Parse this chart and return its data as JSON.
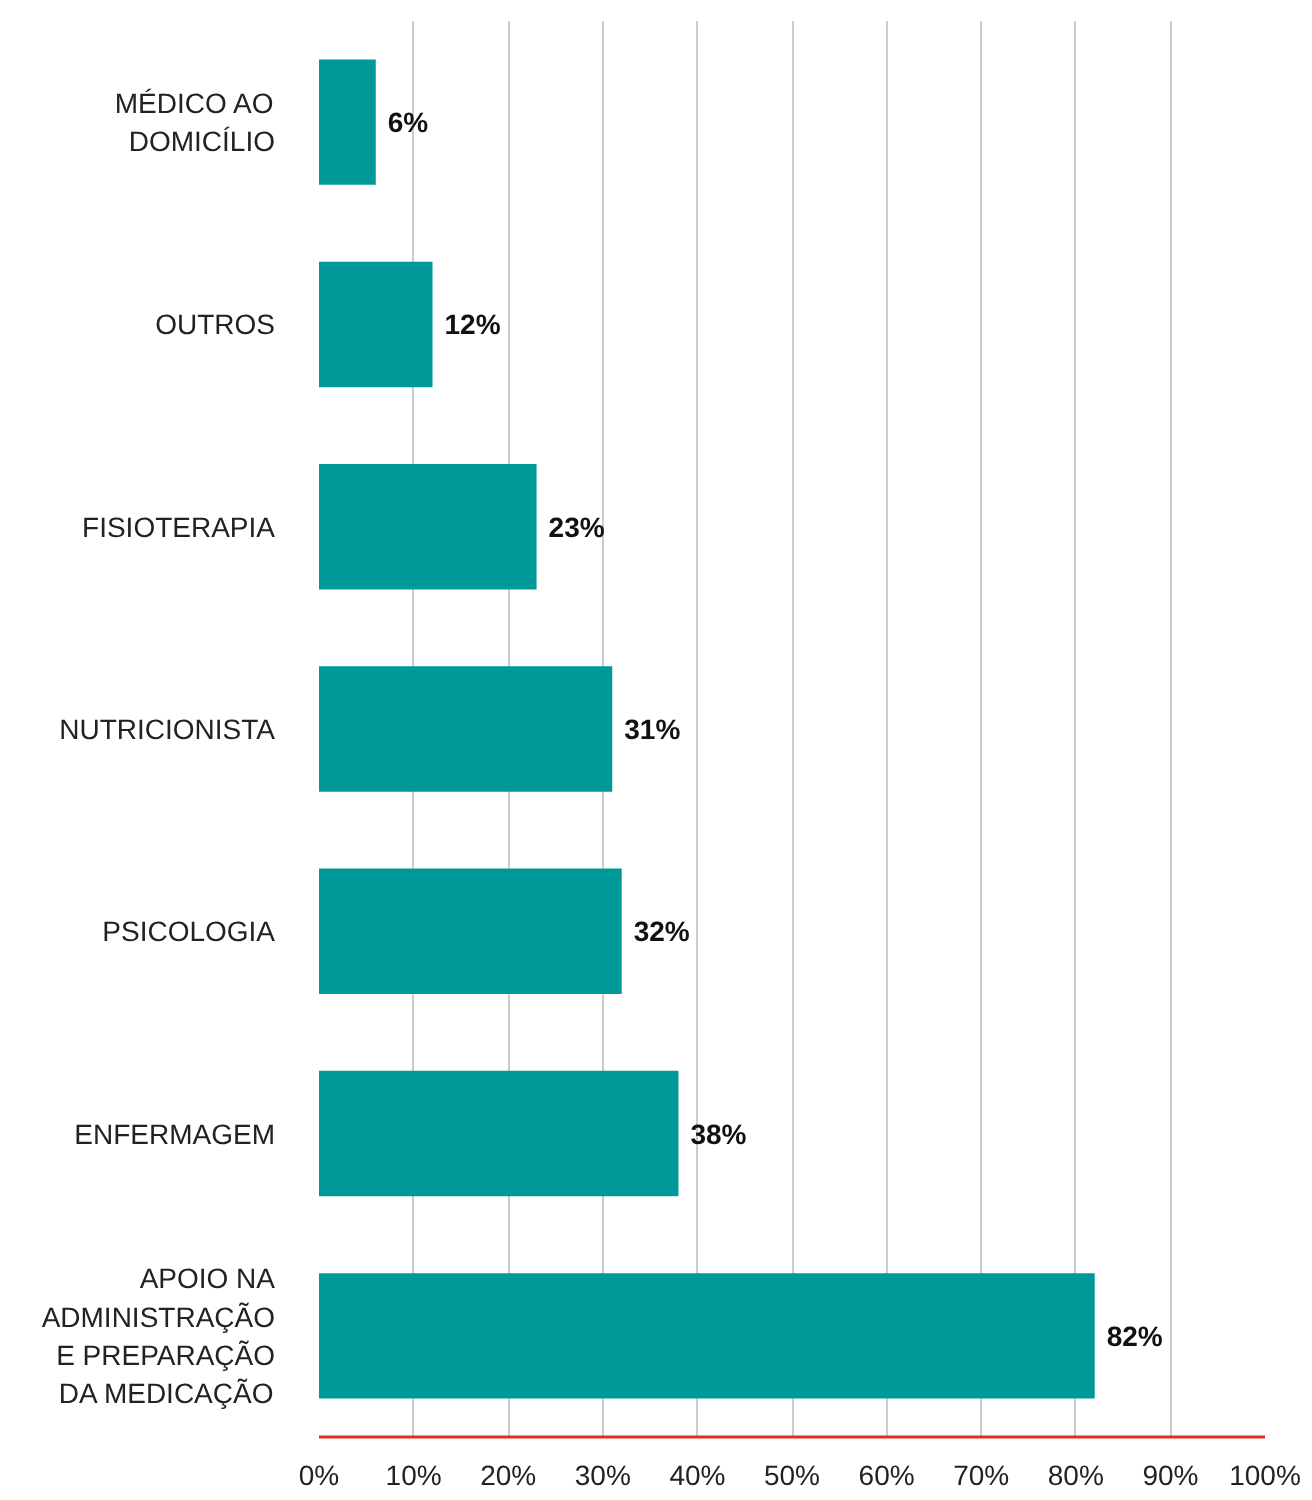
{
  "chart_data": {
    "type": "bar",
    "orientation": "horizontal",
    "categories": [
      "MÉDICO AO\nDOMICÍLIO",
      "OUTROS",
      "FISIOTERAPIA",
      "NUTRICIONISTA",
      "PSICOLOGIA",
      "ENFERMAGEM",
      "APOIO NA\nADMINISTRAÇÃO\nE PREPARAÇÃO\nDA MEDICAÇÃO"
    ],
    "values": [
      6,
      12,
      23,
      31,
      32,
      38,
      82
    ],
    "value_labels": [
      "6%",
      "12%",
      "23%",
      "31%",
      "32%",
      "38%",
      "82%"
    ],
    "color": "#00999a",
    "xlim": [
      0,
      100
    ],
    "xticks": [
      {
        "value": 0,
        "label": "0%"
      },
      {
        "value": 10,
        "label": "10%"
      },
      {
        "value": 20,
        "label": "20%"
      },
      {
        "value": 30,
        "label": "30%"
      },
      {
        "value": 40,
        "label": "40%"
      },
      {
        "value": 50,
        "label": "50%"
      },
      {
        "value": 60,
        "label": "60%"
      },
      {
        "value": 70,
        "label": "70%"
      },
      {
        "value": 80,
        "label": "80%"
      },
      {
        "value": 90,
        "label": "90%"
      },
      {
        "value": 100,
        "label": "100%"
      }
    ],
    "grid": "x"
  }
}
